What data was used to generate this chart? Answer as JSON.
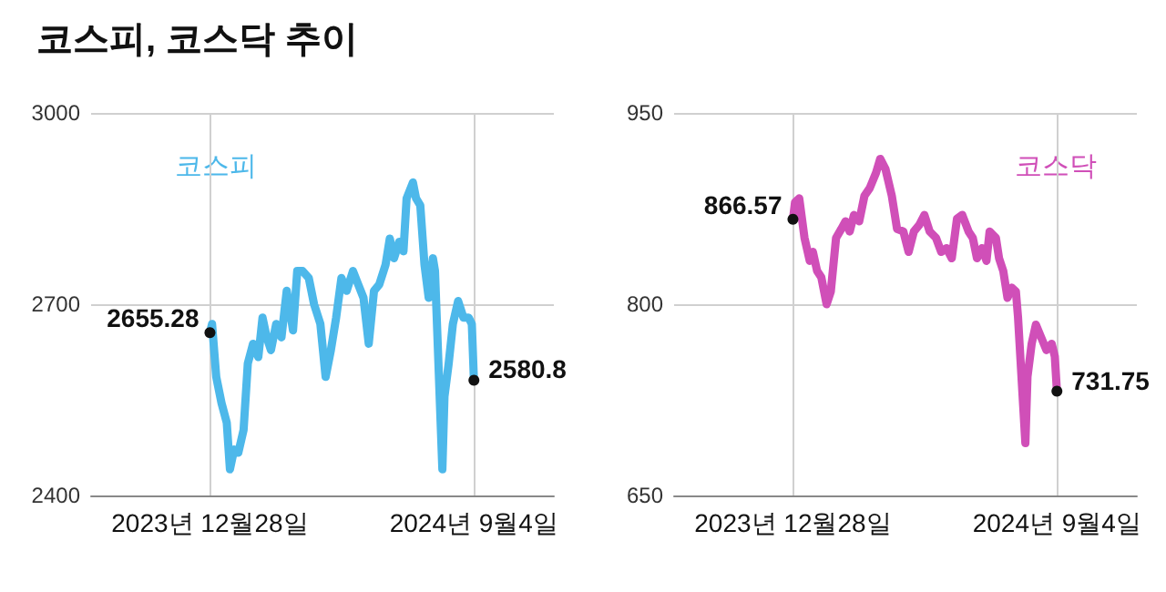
{
  "chart_data": [
    {
      "type": "line",
      "title": "코스피, 코스닥 추이",
      "x": [
        "2023-12-28",
        "2023-12-30",
        "2024-01-03",
        "2024-01-08",
        "2024-01-13",
        "2024-01-16",
        "2024-01-20",
        "2024-01-24",
        "2024-01-29",
        "2024-02-02",
        "2024-02-07",
        "2024-02-12",
        "2024-02-16",
        "2024-02-20",
        "2024-02-24",
        "2024-02-29",
        "2024-03-05",
        "2024-03-10",
        "2024-03-16",
        "2024-03-20",
        "2024-03-25",
        "2024-03-31",
        "2024-04-05",
        "2024-04-11",
        "2024-04-16",
        "2024-04-21",
        "2024-04-26",
        "2024-05-01",
        "2024-05-06",
        "2024-05-12",
        "2024-05-17",
        "2024-05-22",
        "2024-05-27",
        "2024-06-01",
        "2024-06-06",
        "2024-06-12",
        "2024-06-16",
        "2024-06-20",
        "2024-06-25",
        "2024-06-29",
        "2024-07-02",
        "2024-07-08",
        "2024-07-11",
        "2024-07-15",
        "2024-07-19",
        "2024-07-23",
        "2024-07-27",
        "2024-07-29",
        "2024-08-05",
        "2024-08-07",
        "2024-08-11",
        "2024-08-15",
        "2024-08-20",
        "2024-08-25",
        "2024-08-30",
        "2024-09-02",
        "2024-09-04"
      ],
      "series": [
        {
          "name": "코스피",
          "color": "#4db8ea",
          "values": [
            2655.28,
            2669,
            2586,
            2545,
            2514,
            2441,
            2472,
            2467,
            2503,
            2607,
            2638,
            2617,
            2679,
            2648,
            2628,
            2669,
            2648,
            2721,
            2659,
            2752,
            2752,
            2741,
            2700,
            2669,
            2586,
            2628,
            2679,
            2741,
            2721,
            2752,
            2731,
            2710,
            2638,
            2721,
            2731,
            2762,
            2803,
            2772,
            2798,
            2783,
            2866,
            2891,
            2866,
            2855,
            2762,
            2710,
            2772,
            2752,
            2441,
            2555,
            2607,
            2669,
            2705,
            2679,
            2679,
            2669,
            2580.8
          ],
          "value_labels": [
            "2655.28",
            null,
            null,
            null,
            null,
            null,
            null,
            null,
            null,
            null,
            null,
            null,
            null,
            null,
            null,
            null,
            null,
            null,
            null,
            null,
            null,
            null,
            null,
            null,
            null,
            null,
            null,
            null,
            null,
            null,
            null,
            null,
            null,
            null,
            null,
            null,
            null,
            null,
            null,
            null,
            null,
            null,
            null,
            null,
            null,
            null,
            null,
            null,
            null,
            null,
            null,
            null,
            null,
            null,
            null,
            null,
            "2580.8"
          ]
        }
      ],
      "xlim": [
        "2023-09-06",
        "2024-11-19"
      ],
      "xticks": [
        {
          "value": "2023-12-28",
          "label": "2023년 12월28일"
        },
        {
          "value": "2024-09-04",
          "label": "2024년 9월4일"
        }
      ],
      "ylim": [
        2400,
        3000
      ],
      "yticks": [
        2400,
        2700,
        3000
      ],
      "grid": true,
      "legend": false
    },
    {
      "type": "line",
      "x": [
        "2023-12-28",
        "2023-12-30",
        "2024-01-03",
        "2024-01-08",
        "2024-01-13",
        "2024-01-16",
        "2024-01-20",
        "2024-01-24",
        "2024-01-29",
        "2024-02-02",
        "2024-02-07",
        "2024-02-12",
        "2024-02-16",
        "2024-02-20",
        "2024-02-24",
        "2024-02-29",
        "2024-03-05",
        "2024-03-10",
        "2024-03-16",
        "2024-03-20",
        "2024-03-25",
        "2024-03-31",
        "2024-04-05",
        "2024-04-11",
        "2024-04-16",
        "2024-04-21",
        "2024-04-26",
        "2024-05-01",
        "2024-05-06",
        "2024-05-12",
        "2024-05-17",
        "2024-05-22",
        "2024-05-27",
        "2024-06-01",
        "2024-06-06",
        "2024-06-12",
        "2024-06-16",
        "2024-06-20",
        "2024-06-25",
        "2024-06-29",
        "2024-07-02",
        "2024-07-08",
        "2024-07-11",
        "2024-07-15",
        "2024-07-19",
        "2024-07-23",
        "2024-07-27",
        "2024-07-29",
        "2024-08-05",
        "2024-08-07",
        "2024-08-11",
        "2024-08-15",
        "2024-08-20",
        "2024-08-25",
        "2024-08-30",
        "2024-09-02",
        "2024-09-04"
      ],
      "series": [
        {
          "name": "코스닥",
          "color": "#d04fb8",
          "values": [
            866.57,
            880,
            883,
            852,
            834,
            841,
            826,
            821,
            800,
            810,
            852,
            859,
            865,
            857,
            870,
            865,
            885,
            891,
            903,
            914,
            906,
            885,
            859,
            857,
            841,
            857,
            862,
            870,
            857,
            852,
            841,
            844,
            836,
            867,
            870,
            857,
            852,
            836,
            844,
            834,
            857,
            852,
            836,
            826,
            805,
            813,
            810,
            790,
            691,
            743,
            769,
            784,
            774,
            764,
            769,
            759,
            731.75
          ],
          "value_labels": [
            "866.57",
            null,
            null,
            null,
            null,
            null,
            null,
            null,
            null,
            null,
            null,
            null,
            null,
            null,
            null,
            null,
            null,
            null,
            null,
            null,
            null,
            null,
            null,
            null,
            null,
            null,
            null,
            null,
            null,
            null,
            null,
            null,
            null,
            null,
            null,
            null,
            null,
            null,
            null,
            null,
            null,
            null,
            null,
            null,
            null,
            null,
            null,
            null,
            null,
            null,
            null,
            null,
            null,
            null,
            null,
            null,
            "731.75"
          ]
        }
      ],
      "xlim": [
        "2023-09-06",
        "2024-11-19"
      ],
      "xticks": [
        {
          "value": "2023-12-28",
          "label": "2023년 12월28일"
        },
        {
          "value": "2024-09-04",
          "label": "2024년 9월4일"
        }
      ],
      "ylim": [
        650,
        950
      ],
      "yticks": [
        650,
        800,
        950
      ],
      "grid": true,
      "legend": false
    }
  ]
}
